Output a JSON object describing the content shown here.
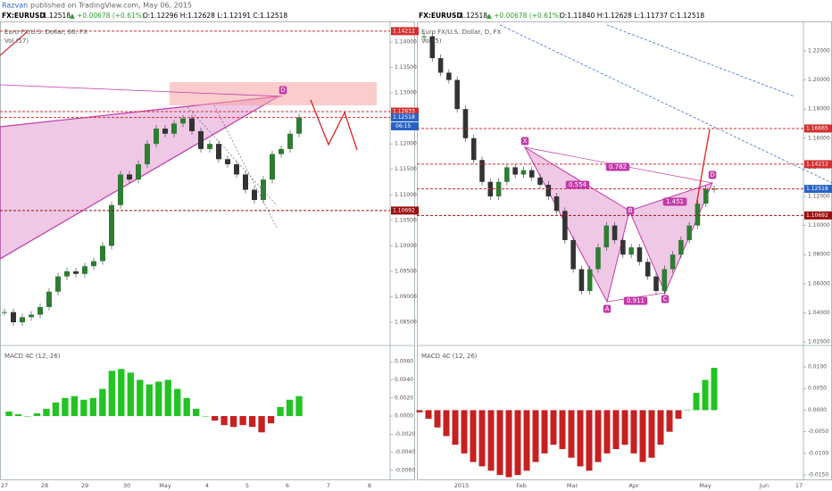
{
  "header": {
    "author": "Razvan",
    "published": "published on TradingView.com, May 06, 2015"
  },
  "panels": [
    {
      "symbol": "FX:EURUSD",
      "price": "1.12518",
      "change": "▲ +0.00678 (+0.61%)",
      "ohlc": "O:1.12296 H:1.12628 L:1.12191 C:1.12518",
      "countdown": "06:15"
    },
    {
      "symbol": "FX:EURUSD",
      "price": "1.12518",
      "change": "▲ +0.00678 (+0.61%)",
      "ohlc": "O:1.11840 H:1.12628 L:1.11737 C:1.12518"
    }
  ],
  "chart_data": [
    {
      "type": "candlestick",
      "title": "Euro FX/U.S. Dollar, 60, FX",
      "volume_label": "Vol (57)",
      "values": [
        1.087,
        1.085,
        1.086,
        1.0865,
        1.088,
        1.091,
        1.094,
        1.095,
        1.0945,
        1.096,
        1.097,
        1.1,
        1.108,
        1.114,
        1.113,
        1.116,
        1.12,
        1.123,
        1.122,
        1.124,
        1.125,
        1.1225,
        1.119,
        1.12,
        1.117,
        1.116,
        1.114,
        1.111,
        1.109,
        1.113,
        1.118,
        1.119,
        1.122,
        1.1252
      ],
      "ylim": [
        1.0808,
        1.14385
      ],
      "yticks": [
        {
          "value": 1.085,
          "label": "1.08500"
        },
        {
          "value": 1.09,
          "label": "1.09000"
        },
        {
          "value": 1.095,
          "label": "1.09500"
        },
        {
          "value": 1.1,
          "label": "1.10000"
        },
        {
          "value": 1.105,
          "label": "1.10500"
        },
        {
          "value": 1.11,
          "label": "1.11000"
        },
        {
          "value": 1.115,
          "label": "1.11500"
        },
        {
          "value": 1.12,
          "label": "1.12000"
        },
        {
          "value": 1.125,
          "label": "1.12500"
        },
        {
          "value": 1.13,
          "label": "1.13000"
        },
        {
          "value": 1.135,
          "label": "1.13500"
        },
        {
          "value": 1.14,
          "label": "1.14000"
        }
      ],
      "levels": [
        {
          "value": 1.14212,
          "color": "#d32f2f"
        },
        {
          "value": 1.12633,
          "color": "#d32f2f"
        },
        {
          "value": 1.12518,
          "color": "#2962c4"
        },
        {
          "value": 1.10692,
          "color": "#9b1010"
        }
      ],
      "annotations": [
        "D"
      ],
      "up_color": "#2e7d32",
      "down_color": "#333333"
    },
    {
      "type": "histogram",
      "title": "MACD 4C (12, 26)",
      "values": [
        0.0005,
        0.0002,
        0.0,
        0.0003,
        0.0008,
        0.0015,
        0.002,
        0.0022,
        0.0018,
        0.002,
        0.003,
        0.005,
        0.0052,
        0.0048,
        0.004,
        0.0035,
        0.0038,
        0.004,
        0.003,
        0.002,
        0.0008,
        0.0,
        -0.0005,
        -0.001,
        -0.0012,
        -0.001,
        -0.0012,
        -0.0018,
        -0.0008,
        0.001,
        0.0018,
        0.0022
      ],
      "ylim": [
        -0.0068,
        0.0075
      ],
      "yticks": [
        {
          "value": -0.006,
          "label": "-0.0060"
        },
        {
          "value": -0.004,
          "label": "-0.0040"
        },
        {
          "value": -0.002,
          "label": "-0.0020"
        },
        {
          "value": 0,
          "label": "0.0000"
        },
        {
          "value": 0.002,
          "label": "0.0020"
        },
        {
          "value": 0.004,
          "label": "0.0040"
        },
        {
          "value": 0.006,
          "label": "0.0060"
        }
      ],
      "x_labels": [
        "27",
        "28",
        "29",
        "30",
        "May",
        "4",
        "5",
        "6",
        "7",
        "8"
      ],
      "pos_color": "#22c322",
      "neg_color": "#c62020"
    },
    {
      "type": "candlestick",
      "title": "Euro FX/U.S. Dollar, D, FX",
      "volume_label": "Vol (5)",
      "values": [
        1.23,
        1.215,
        1.205,
        1.2,
        1.18,
        1.16,
        1.145,
        1.13,
        1.12,
        1.13,
        1.14,
        1.135,
        1.138,
        1.133,
        1.128,
        1.12,
        1.11,
        1.09,
        1.07,
        1.055,
        1.07,
        1.085,
        1.1,
        1.09,
        1.08,
        1.085,
        1.075,
        1.065,
        1.055,
        1.07,
        1.08,
        1.09,
        1.1,
        1.115,
        1.125,
        1.1252
      ],
      "ylim": [
        1.0188,
        1.2396
      ],
      "yticks": [
        {
          "value": 1.02,
          "label": "1.02000"
        },
        {
          "value": 1.04,
          "label": "1.04000"
        },
        {
          "value": 1.06,
          "label": "1.06000"
        },
        {
          "value": 1.08,
          "label": "1.08000"
        },
        {
          "value": 1.1,
          "label": "1.10000"
        },
        {
          "value": 1.12,
          "label": "1.12000"
        },
        {
          "value": 1.14,
          "label": "1.14000"
        },
        {
          "value": 1.16,
          "label": "1.16000"
        },
        {
          "value": 1.18,
          "label": "1.18000"
        },
        {
          "value": 1.2,
          "label": "1.20000"
        },
        {
          "value": 1.22,
          "label": "1.22000"
        }
      ],
      "levels": [
        {
          "value": 1.16665,
          "color": "#d32f2f"
        },
        {
          "value": 1.14212,
          "color": "#d32f2f"
        },
        {
          "value": 1.12518,
          "color": "#2962c4"
        },
        {
          "value": 1.10692,
          "color": "#9b1010"
        }
      ],
      "annotations": [
        "X",
        "A",
        "B",
        "C",
        "D",
        "0.782",
        "0.554",
        "1.451",
        "0.911"
      ],
      "up_color": "#2e7d32",
      "down_color": "#333333"
    },
    {
      "type": "histogram",
      "title": "MACD 4C (12, 26)",
      "values": [
        -0.0005,
        -0.002,
        -0.004,
        -0.006,
        -0.008,
        -0.01,
        -0.012,
        -0.013,
        -0.014,
        -0.015,
        -0.0155,
        -0.015,
        -0.014,
        -0.012,
        -0.01,
        -0.008,
        -0.009,
        -0.011,
        -0.013,
        -0.014,
        -0.012,
        -0.01,
        -0.009,
        -0.008,
        -0.01,
        -0.012,
        -0.011,
        -0.008,
        -0.005,
        -0.002,
        0.0,
        0.004,
        0.007,
        0.0098
      ],
      "ylim": [
        -0.0156,
        0.01434
      ],
      "yticks": [
        {
          "value": -0.015,
          "label": "-0.0150"
        },
        {
          "value": -0.01,
          "label": "-0.0100"
        },
        {
          "value": -0.005,
          "label": "-0.0050"
        },
        {
          "value": 0,
          "label": "0.0000"
        },
        {
          "value": 0.005,
          "label": "0.0050"
        },
        {
          "value": 0.01,
          "label": "0.0100"
        }
      ],
      "x_labels": [
        "2015",
        "Feb",
        "Mar",
        "Apr",
        "May",
        "Jun",
        "17"
      ],
      "pos_color": "#22c322",
      "neg_color": "#c62020"
    }
  ]
}
